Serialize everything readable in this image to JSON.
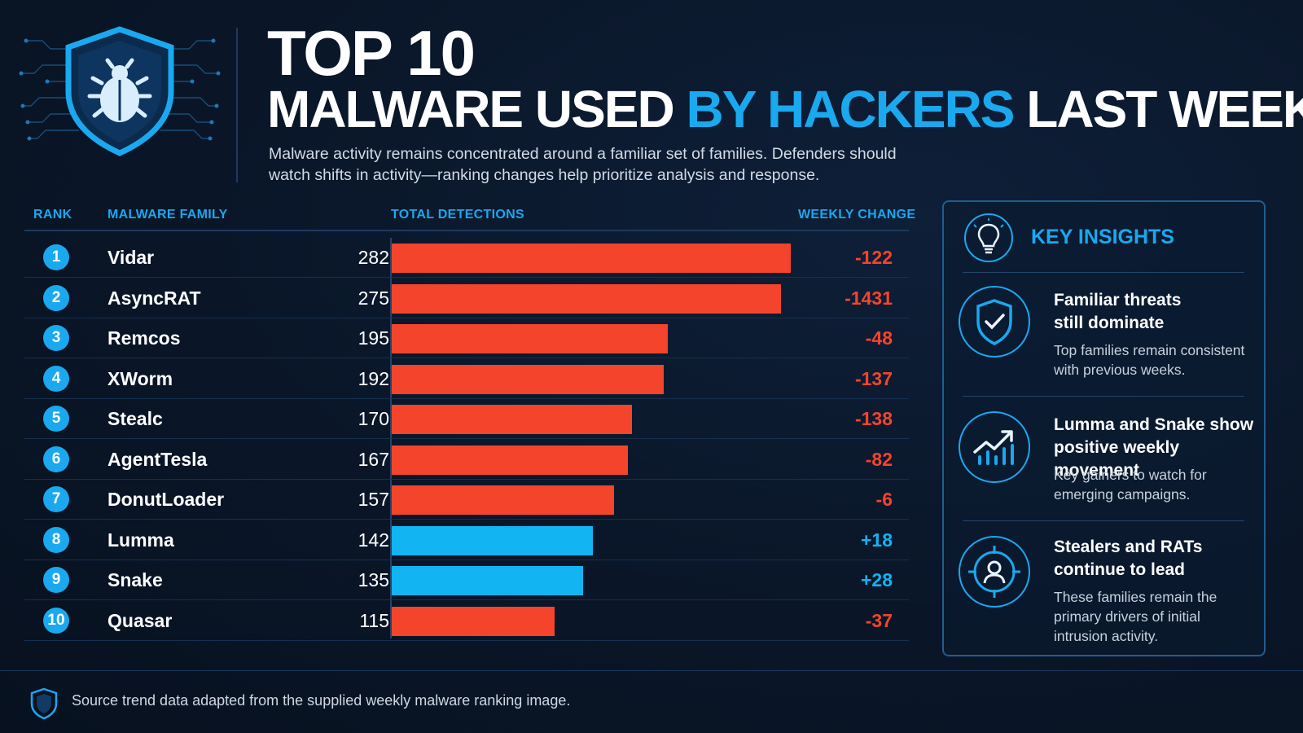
{
  "header": {
    "title_line1": "TOP 10",
    "title_line2_a": "MALWARE USED ",
    "title_line2_b": "BY HACKERS",
    "title_line2_c": " LAST WEEK",
    "subtitle": "Malware activity remains concentrated around a familiar set of families. Defenders should watch shifts in activity—ranking changes help prioritize analysis and response."
  },
  "table": {
    "col_rank": "RANK",
    "col_family": "MALWARE FAMILY",
    "col_total": "TOTAL DETECTIONS",
    "col_change": "WEEKLY CHANGE"
  },
  "colors": {
    "decline": "#f5442c",
    "gain": "#12b4f2",
    "accent": "#1aa8ef",
    "background": "#0a1628"
  },
  "chart_data": {
    "type": "bar",
    "orientation": "horizontal",
    "xlim": [
      0,
      282
    ],
    "grid": false,
    "rows": [
      {
        "rank": "1",
        "family": "Vidar",
        "total": 282,
        "change": "-122",
        "trend": "down"
      },
      {
        "rank": "2",
        "family": "AsyncRAT",
        "total": 275,
        "change": "-1431",
        "trend": "down"
      },
      {
        "rank": "3",
        "family": "Remcos",
        "total": 195,
        "change": "-48",
        "trend": "down"
      },
      {
        "rank": "4",
        "family": "XWorm",
        "total": 192,
        "change": "-137",
        "trend": "down"
      },
      {
        "rank": "5",
        "family": "Stealc",
        "total": 170,
        "change": "-138",
        "trend": "down"
      },
      {
        "rank": "6",
        "family": "AgentTesla",
        "total": 167,
        "change": "-82",
        "trend": "down"
      },
      {
        "rank": "7",
        "family": "DonutLoader",
        "total": 157,
        "change": "-6",
        "trend": "down"
      },
      {
        "rank": "8",
        "family": "Lumma",
        "total": 142,
        "change": "+18",
        "trend": "up"
      },
      {
        "rank": "9",
        "family": "Snake",
        "total": 135,
        "change": "+28",
        "trend": "up"
      },
      {
        "rank": "10",
        "family": "Quasar",
        "total": 115,
        "change": "-37",
        "trend": "down"
      }
    ]
  },
  "insights": {
    "title": "KEY INSIGHTS",
    "items": [
      {
        "icon": "shield-check-icon",
        "heading_1": "Familiar threats",
        "heading_2": "still dominate",
        "body_1": "Top families remain consistent",
        "body_2": "with previous weeks.",
        "body_3": ""
      },
      {
        "icon": "trend-up-chart-icon",
        "heading_1": "Lumma and Snake show",
        "heading_2": "positive weekly movement",
        "body_1": "Key gainers to watch for",
        "body_2": "emerging campaigns.",
        "body_3": ""
      },
      {
        "icon": "target-user-icon",
        "heading_1": "Stealers and RATs",
        "heading_2": "continue to lead",
        "body_1": "These families remain the",
        "body_2": "primary drivers of initial",
        "body_3": "intrusion activity."
      }
    ]
  },
  "footer": {
    "icon": "shield-icon",
    "text": "Source trend data adapted from the supplied weekly malware ranking image."
  }
}
